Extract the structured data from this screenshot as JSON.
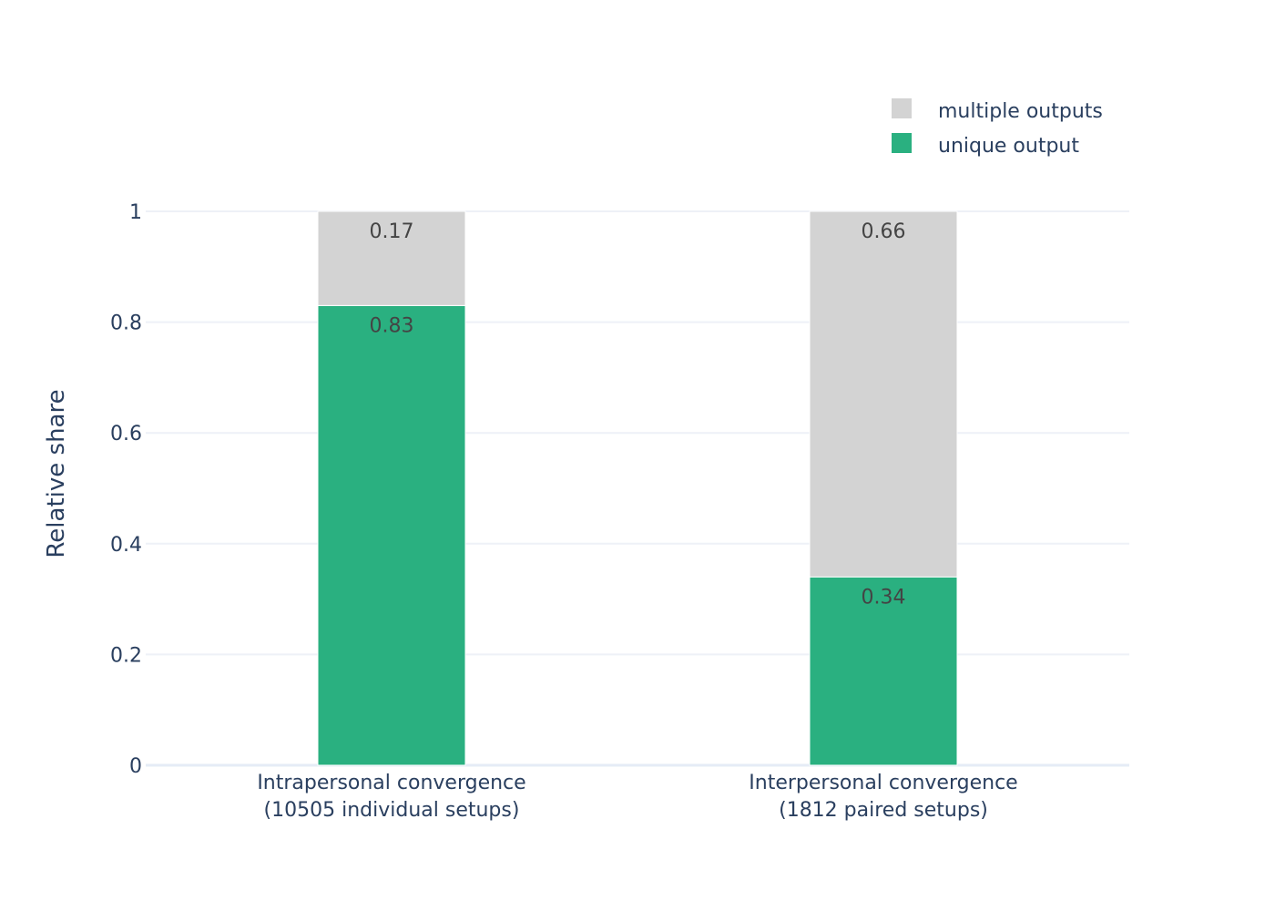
{
  "chart_data": {
    "type": "bar",
    "stacked": true,
    "categories": [
      [
        "Intrapersonal convergence",
        "(10505 individual setups)"
      ],
      [
        "Interpersonal convergence",
        "(1812 paired setups)"
      ]
    ],
    "series": [
      {
        "name": "unique output",
        "values": [
          0.83,
          0.34
        ],
        "labels": [
          "0.83",
          "0.34"
        ],
        "color": "#2ab080"
      },
      {
        "name": "multiple outputs",
        "values": [
          0.17,
          0.66
        ],
        "labels": [
          "0.17",
          "0.66"
        ],
        "color": "#d3d3d3"
      }
    ],
    "ylabel": "Relative share",
    "ylim": [
      0,
      1
    ],
    "yticks": [
      0,
      0.2,
      0.4,
      0.6,
      0.8,
      1
    ],
    "ytick_labels": [
      "0",
      "0.2",
      "0.4",
      "0.6",
      "0.8",
      "1"
    ],
    "grid": true,
    "legend_position": "top-right",
    "legend_order": [
      "multiple outputs",
      "unique output"
    ]
  }
}
